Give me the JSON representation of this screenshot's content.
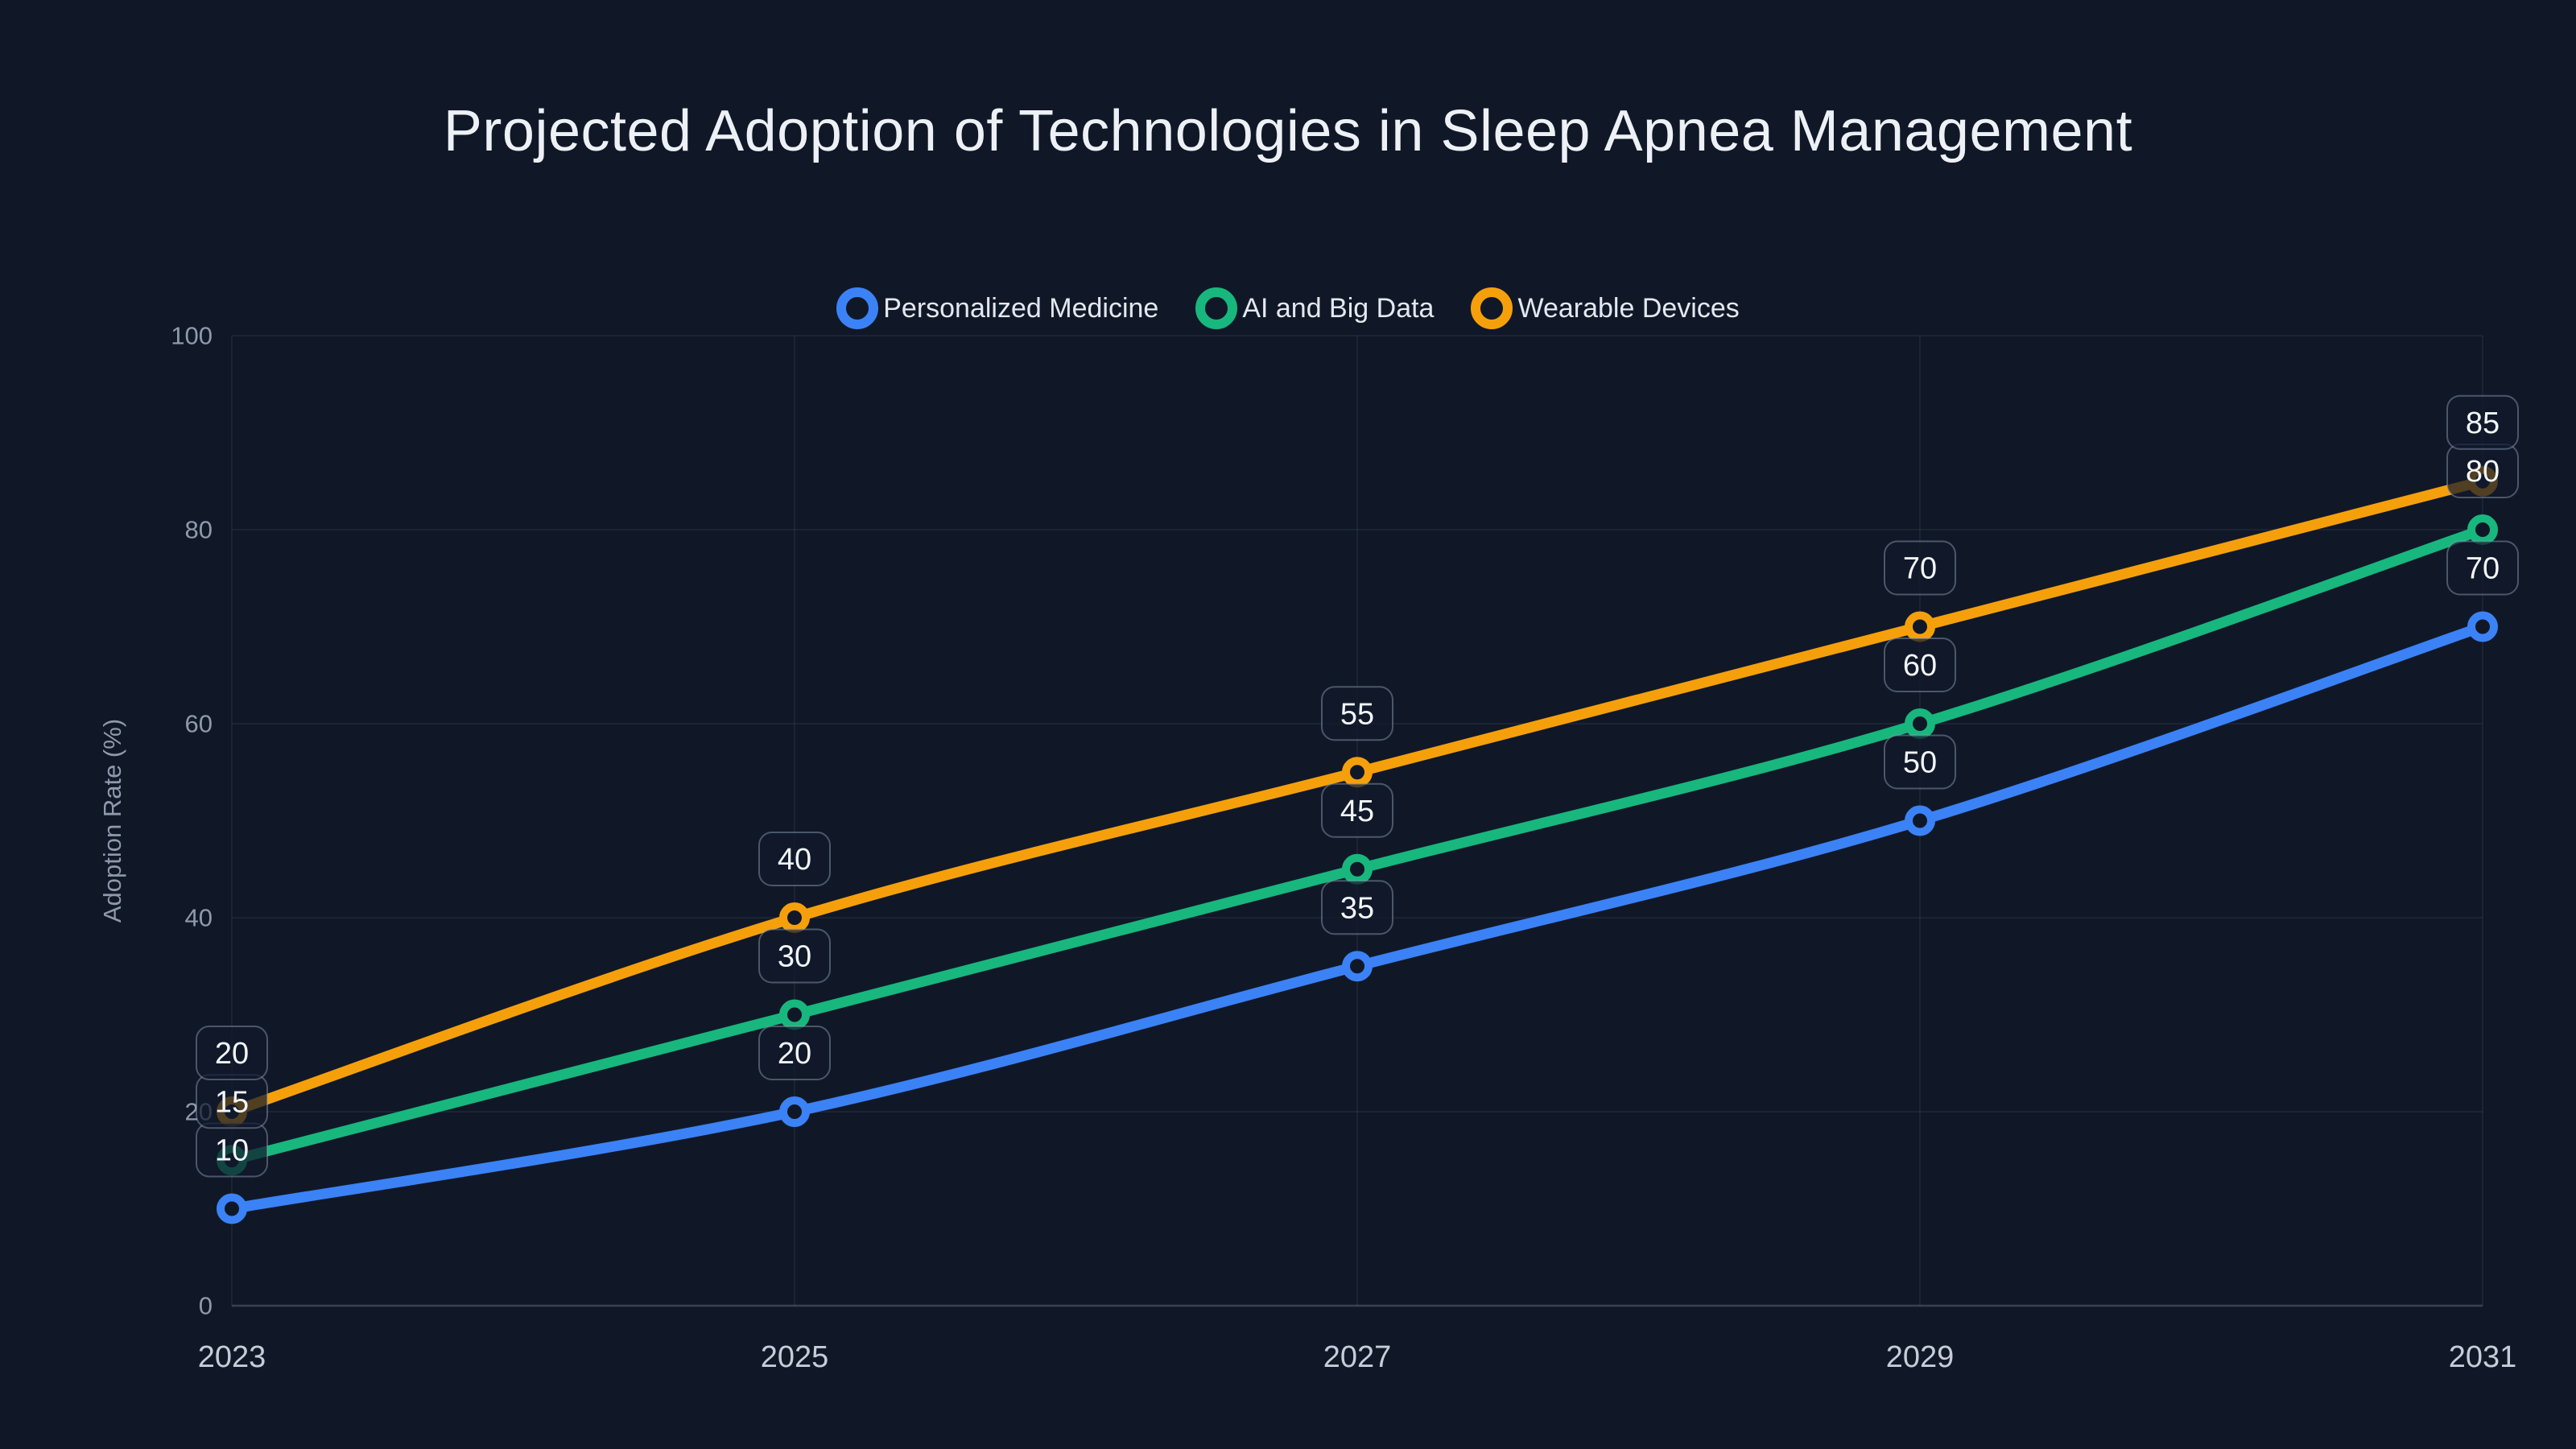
{
  "page": {
    "background": "#101828"
  },
  "title": "Projected Adoption of Technologies in Sleep Apnea Management",
  "chart_data": {
    "type": "line",
    "x": [
      "2023",
      "2025",
      "2027",
      "2029",
      "2031"
    ],
    "series": [
      {
        "name": "Personalized Medicine",
        "color": "#3b82f6",
        "values": [
          10,
          20,
          35,
          50,
          70
        ]
      },
      {
        "name": "AI and Big Data",
        "color": "#18b77d",
        "values": [
          15,
          30,
          45,
          60,
          80
        ]
      },
      {
        "name": "Wearable Devices",
        "color": "#f5a00b",
        "values": [
          20,
          40,
          55,
          70,
          85
        ]
      }
    ],
    "xlabel": "",
    "ylabel": "Adoption Rate (%)",
    "ylim": [
      0,
      100
    ],
    "yticks": [
      0,
      20,
      40,
      60,
      80,
      100
    ],
    "grid": true,
    "legend_position": "top-center",
    "point_labels": true,
    "marker": "open-circle",
    "smooth": true
  }
}
